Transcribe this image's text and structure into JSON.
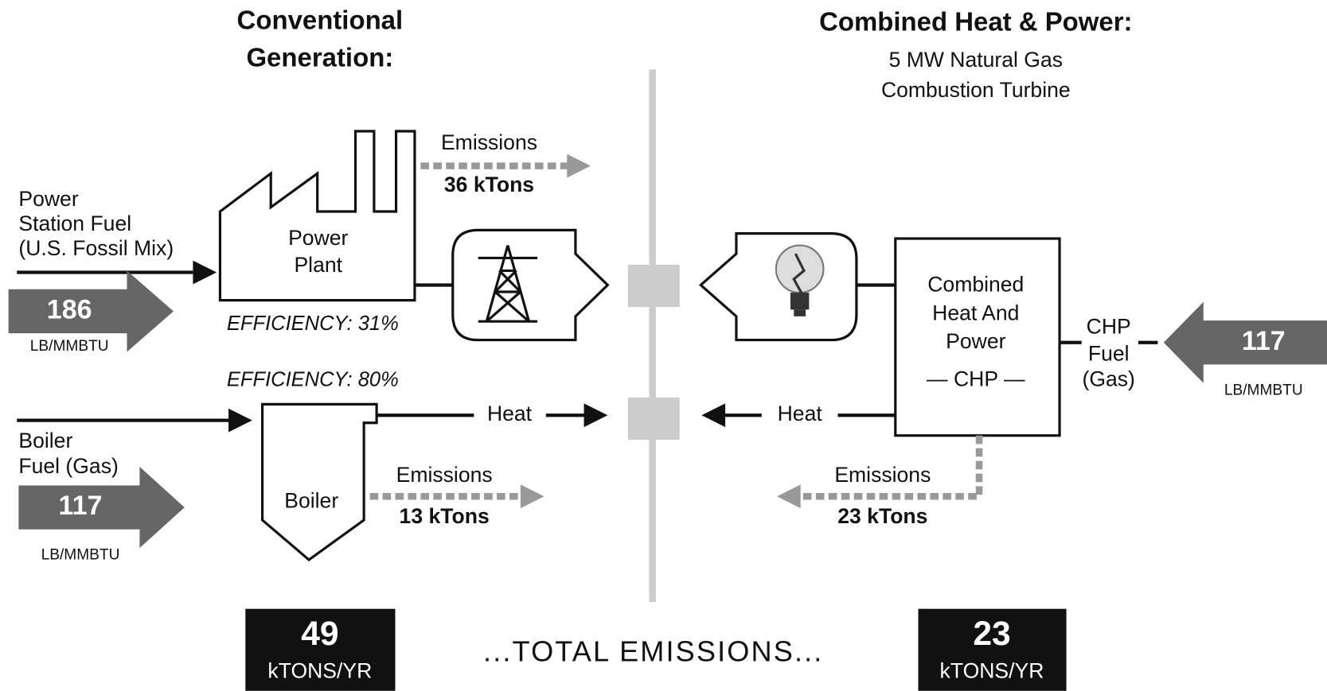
{
  "left": {
    "title": [
      "Conventional",
      "Generation:"
    ],
    "power_fuel": {
      "label": [
        "Power",
        "Station Fuel",
        "(U.S. Fossil Mix)"
      ],
      "value": 186,
      "unit": "LB/MMBTU"
    },
    "power_plant": [
      "Power",
      "Plant"
    ],
    "power_efficiency": "EFFICIENCY: 31%",
    "power_emissions": {
      "label": "Emissions",
      "value": "36 kTons"
    },
    "boiler_efficiency": "EFFICIENCY: 80%",
    "boiler_fuel": {
      "label": [
        "Boiler",
        "Fuel (Gas)"
      ],
      "value": 117,
      "unit": "LB/MMBTU"
    },
    "boiler": "Boiler",
    "heat": "Heat",
    "boiler_emissions": {
      "label": "Emissions",
      "value": "13 kTons"
    },
    "total": {
      "value": 49,
      "unit": "kTONS/YR"
    }
  },
  "right": {
    "title": "Combined Heat & Power:",
    "subtitle": [
      "5 MW Natural Gas",
      "Combustion Turbine"
    ],
    "chp": [
      "Combined",
      "Heat And",
      "Power",
      "— CHP —"
    ],
    "chp_fuel": {
      "label": [
        "CHP",
        "Fuel",
        "(Gas)"
      ],
      "value": 117,
      "unit": "LB/MMBTU"
    },
    "heat": "Heat",
    "emissions": {
      "label": "Emissions",
      "value": "23 kTons"
    },
    "total": {
      "value": 23,
      "unit": "kTONS/YR"
    }
  },
  "total_label": "...TOTAL EMISSIONS..."
}
